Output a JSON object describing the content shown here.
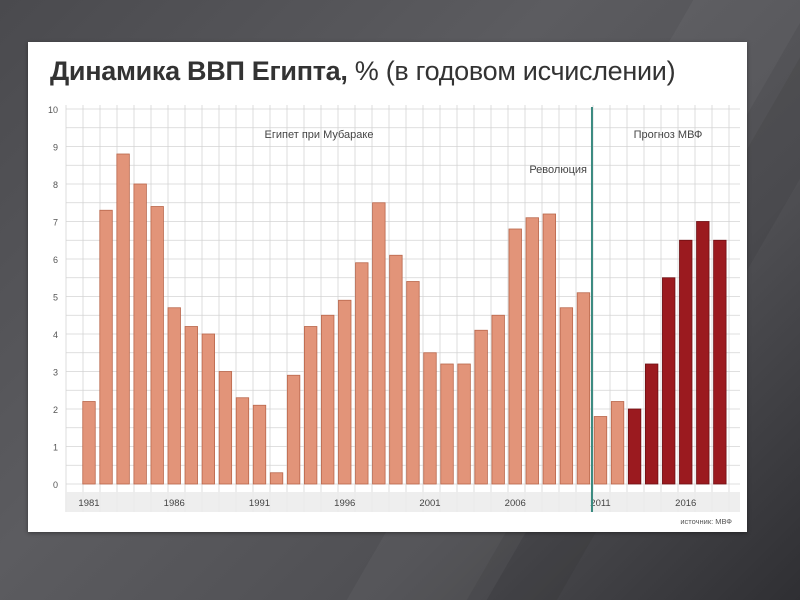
{
  "slide": {
    "title_main": "Динамика ВВП Египта,",
    "title_suffix": "% (в годовом исчислении)",
    "source": "источник: МВФ"
  },
  "colors": {
    "actual_bar": "#e29479",
    "actual_stroke": "#b9664b",
    "forecast_bar": "#9b1a1f",
    "forecast_stroke": "#6e0f13",
    "divider": "#3a8a80",
    "grid": "#d4d4d4"
  },
  "chart_data": {
    "type": "bar",
    "title": "Динамика ВВП Египта, % (в годовом исчислении)",
    "xlabel": "",
    "ylabel": "",
    "ylim": [
      0,
      10
    ],
    "y_ticks": [
      "0",
      "1",
      "2",
      "3",
      "4",
      "5",
      "6",
      "7",
      "8",
      "9",
      "10"
    ],
    "x_tick_labels": [
      "1981",
      "1986",
      "1991",
      "1996",
      "2001",
      "2006",
      "2011",
      "2016"
    ],
    "grid": true,
    "categories": [
      "1981",
      "1982",
      "1983",
      "1984",
      "1985",
      "1986",
      "1987",
      "1988",
      "1989",
      "1990",
      "1991",
      "1992",
      "1993",
      "1994",
      "1995",
      "1996",
      "1997",
      "1998",
      "1999",
      "2000",
      "2001",
      "2002",
      "2003",
      "2004",
      "2005",
      "2006",
      "2007",
      "2008",
      "2009",
      "2010",
      "2011",
      "2012",
      "2013",
      "2014",
      "2015",
      "2016",
      "2017",
      "2018"
    ],
    "series": [
      {
        "values": [
          2.2,
          7.3,
          8.8,
          8.0,
          7.4,
          4.7,
          4.2,
          4.0,
          3.0,
          2.3,
          2.1,
          0.3,
          2.9,
          4.2,
          4.5,
          4.9,
          5.9,
          7.5,
          6.1,
          5.4,
          3.5,
          3.2,
          3.2,
          4.1,
          4.5,
          6.8,
          7.1,
          7.2,
          4.7,
          5.1,
          1.8,
          2.2,
          2.0,
          3.2,
          5.5,
          6.5,
          7.0,
          6.5
        ],
        "forecast_from": "2013"
      }
    ],
    "annotations": [
      {
        "text": "Египет при Мубараке",
        "position": "top-center"
      },
      {
        "text": "Революция",
        "at": "2011"
      },
      {
        "text": "Прогноз МВФ",
        "position": "top-right"
      }
    ],
    "divider_at": "2011"
  }
}
